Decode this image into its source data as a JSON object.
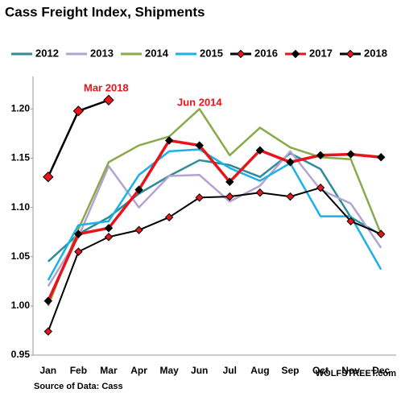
{
  "chart_data": {
    "type": "line",
    "title": "Cass Freight Index,  Shipments",
    "categories": [
      "Jan",
      "Feb",
      "Mar",
      "Apr",
      "May",
      "Jun",
      "Jul",
      "Aug",
      "Sep",
      "Oct",
      "Nov",
      "Dec"
    ],
    "series": [
      {
        "name": "2012",
        "color": "#2e8b9a",
        "values": [
          1.045,
          1.073,
          1.09,
          1.114,
          1.132,
          1.148,
          1.143,
          1.131,
          1.155,
          1.139,
          1.09,
          1.072
        ]
      },
      {
        "name": "2013",
        "color": "#b3a3d3",
        "values": [
          1.02,
          1.07,
          1.142,
          1.1,
          1.132,
          1.133,
          1.106,
          1.122,
          1.157,
          1.118,
          1.104,
          1.059
        ]
      },
      {
        "name": "2014",
        "color": "#8aaa4a",
        "values": [
          1.0,
          1.078,
          1.146,
          1.163,
          1.172,
          1.2,
          1.153,
          1.181,
          1.161,
          1.151,
          1.149,
          1.073
        ]
      },
      {
        "name": "2015",
        "color": "#1ab0e8",
        "values": [
          1.026,
          1.082,
          1.086,
          1.133,
          1.157,
          1.159,
          1.14,
          1.127,
          1.145,
          1.091,
          1.091,
          1.037
        ]
      },
      {
        "name": "2016",
        "color": "#000000",
        "marker": "diamond",
        "marker_color": "#e8141b",
        "values": [
          0.974,
          1.055,
          1.07,
          1.077,
          1.09,
          1.11,
          1.111,
          1.115,
          1.111,
          1.12,
          1.086,
          1.073
        ]
      },
      {
        "name": "2017",
        "color": "#e8141b",
        "marker": "diamond",
        "marker_color": "#000000",
        "values": [
          1.005,
          1.073,
          1.079,
          1.118,
          1.168,
          1.163,
          1.126,
          1.158,
          1.146,
          1.153,
          1.154,
          1.151
        ]
      },
      {
        "name": "2018",
        "color": "#000000",
        "marker": "diamond",
        "marker_color": "#e8141b",
        "values": [
          1.131,
          1.198,
          1.209,
          null,
          null,
          null,
          null,
          null,
          null,
          null,
          null,
          null
        ]
      }
    ],
    "ylim": [
      0.95,
      1.233
    ],
    "yticks": [
      {
        "value": 0.95,
        "label": "0.95"
      },
      {
        "value": 1.0,
        "label": "1.00"
      },
      {
        "value": 1.05,
        "label": "1.05"
      },
      {
        "value": 1.1,
        "label": "1.10"
      },
      {
        "value": 1.15,
        "label": "1.15"
      },
      {
        "value": 1.2,
        "label": "1.20"
      }
    ],
    "annotations": [
      "Mar 2018",
      "Jun 2014"
    ],
    "source": "Source of Data: Cass",
    "credit": "WOLFSTREET.com"
  }
}
